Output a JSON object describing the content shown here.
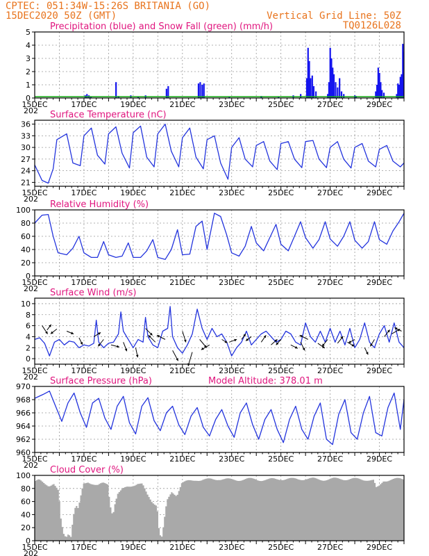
{
  "header": {
    "line1": "CPTEC:  051:34W-15:26S  BRITANIA (GO)",
    "line2": "15DEC2020 50Z (GMT)",
    "grid_note": "Vertical Grid Line: 50Z",
    "code": "TQ0126L028"
  },
  "colors": {
    "header": "#e8731c",
    "title": "#e0157e",
    "rain": "#1515ee",
    "snow": "#11aa11",
    "line": "#2233dd",
    "cloud": "#a9a9a9"
  },
  "chart_data": [
    {
      "id": "precip",
      "type": "bar",
      "title": "Precipitation (blue) and Snow Fall (green) (mm/h)",
      "ylim": [
        0,
        5
      ],
      "yticks": [
        0,
        1,
        2,
        3,
        4,
        5
      ],
      "xlim": [
        15,
        30
      ],
      "xticks": [
        "15DEC",
        "17DEC",
        "19DEC",
        "21DEC",
        "23DEC",
        "25DEC",
        "27DEC",
        "29DEC"
      ],
      "x_sub": "202",
      "rain_events": [
        [
          17.05,
          0.2
        ],
        [
          17.12,
          0.3
        ],
        [
          17.2,
          0.2
        ],
        [
          17.28,
          0.1
        ],
        [
          18.3,
          1.2
        ],
        [
          18.4,
          0.15
        ],
        [
          18.9,
          0.2
        ],
        [
          19.2,
          0.1
        ],
        [
          19.5,
          0.2
        ],
        [
          20.35,
          0.7
        ],
        [
          20.42,
          0.9
        ],
        [
          21.65,
          1.1
        ],
        [
          21.72,
          1.2
        ],
        [
          21.8,
          1.0
        ],
        [
          21.87,
          1.1
        ],
        [
          22.9,
          0.1
        ],
        [
          24.2,
          0.15
        ],
        [
          24.9,
          0.1
        ],
        [
          25.5,
          0.2
        ],
        [
          25.8,
          0.3
        ],
        [
          26.05,
          1.5
        ],
        [
          26.1,
          3.8
        ],
        [
          26.15,
          2.8
        ],
        [
          26.2,
          1.5
        ],
        [
          26.27,
          1.7
        ],
        [
          26.33,
          0.9
        ],
        [
          26.42,
          0.5
        ],
        [
          26.9,
          0.3
        ],
        [
          26.95,
          1.2
        ],
        [
          27.0,
          3.8
        ],
        [
          27.05,
          3.0
        ],
        [
          27.1,
          2.3
        ],
        [
          27.15,
          1.8
        ],
        [
          27.22,
          1.2
        ],
        [
          27.3,
          0.8
        ],
        [
          27.38,
          1.5
        ],
        [
          27.46,
          0.5
        ],
        [
          27.55,
          0.3
        ],
        [
          28.0,
          0.2
        ],
        [
          28.05,
          0.15
        ],
        [
          28.85,
          0.5
        ],
        [
          28.9,
          1.0
        ],
        [
          28.95,
          2.3
        ],
        [
          29.0,
          1.9
        ],
        [
          29.05,
          1.2
        ],
        [
          29.1,
          0.6
        ],
        [
          29.18,
          0.4
        ],
        [
          29.7,
          0.3
        ],
        [
          29.75,
          1.1
        ],
        [
          29.8,
          1.0
        ],
        [
          29.85,
          1.6
        ],
        [
          29.9,
          1.8
        ],
        [
          29.95,
          4.1
        ],
        [
          29.98,
          3.5
        ]
      ],
      "snow_level": 0.1
    },
    {
      "id": "temp",
      "type": "line",
      "title": "Surface Temperature (nC)",
      "ylim": [
        20,
        37
      ],
      "yticks": [
        21,
        24,
        27,
        30,
        33,
        36
      ],
      "xlim": [
        15,
        30
      ],
      "xticks": [
        "15DEC",
        "17DEC",
        "19DEC",
        "21DEC",
        "23DEC",
        "25DEC",
        "27DEC",
        "29DEC"
      ],
      "x_sub": "202",
      "x": [
        15.0,
        15.3,
        15.55,
        15.75,
        15.9,
        16.3,
        16.55,
        16.85,
        17.0,
        17.3,
        17.55,
        17.85,
        18.0,
        18.3,
        18.55,
        18.85,
        19.0,
        19.3,
        19.55,
        19.85,
        20.0,
        20.3,
        20.55,
        20.85,
        21.0,
        21.3,
        21.55,
        21.85,
        22.0,
        22.3,
        22.55,
        22.85,
        23.0,
        23.3,
        23.55,
        23.85,
        24.0,
        24.3,
        24.55,
        24.85,
        25.0,
        25.3,
        25.55,
        25.85,
        26.0,
        26.3,
        26.55,
        26.85,
        27.0,
        27.3,
        27.55,
        27.85,
        28.0,
        28.3,
        28.55,
        28.85,
        29.0,
        29.3,
        29.55,
        29.85,
        30.0
      ],
      "y": [
        25.5,
        21.5,
        20.8,
        24.5,
        32.0,
        33.5,
        26.0,
        25.3,
        33.0,
        35.0,
        28.0,
        25.7,
        33.5,
        35.3,
        28.5,
        24.7,
        33.8,
        35.5,
        27.5,
        25.0,
        33.5,
        36.0,
        29.0,
        25.0,
        32.5,
        35.0,
        27.5,
        24.5,
        32.0,
        33.0,
        26.0,
        21.8,
        30.0,
        32.5,
        27.0,
        25.0,
        30.5,
        31.5,
        26.5,
        24.3,
        31.0,
        31.5,
        27.0,
        24.8,
        31.5,
        31.8,
        27.0,
        24.8,
        30.0,
        31.5,
        27.0,
        24.7,
        30.0,
        31.0,
        26.5,
        25.0,
        29.5,
        30.5,
        26.5,
        25.0,
        26.0
      ]
    },
    {
      "id": "rh",
      "type": "line",
      "title": "Relative Humidity (%)",
      "ylim": [
        0,
        100
      ],
      "yticks": [
        0,
        20,
        40,
        60,
        80,
        100
      ],
      "xlim": [
        15,
        30
      ],
      "xticks": [
        "15DEC",
        "17DEC",
        "19DEC",
        "21DEC",
        "23DEC",
        "25DEC",
        "27DEC",
        "29DEC"
      ],
      "x_sub": "202",
      "x": [
        15.0,
        15.3,
        15.55,
        15.75,
        15.95,
        16.3,
        16.55,
        16.8,
        17.0,
        17.3,
        17.55,
        17.8,
        18.0,
        18.3,
        18.55,
        18.8,
        19.0,
        19.3,
        19.55,
        19.8,
        20.0,
        20.3,
        20.55,
        20.8,
        21.0,
        21.3,
        21.55,
        21.8,
        22.0,
        22.3,
        22.55,
        22.8,
        23.0,
        23.3,
        23.55,
        23.8,
        24.0,
        24.3,
        24.55,
        24.8,
        25.0,
        25.3,
        25.55,
        25.8,
        26.0,
        26.3,
        26.55,
        26.8,
        27.0,
        27.3,
        27.55,
        27.8,
        28.0,
        28.3,
        28.55,
        28.8,
        29.0,
        29.3,
        29.55,
        29.8,
        30.0
      ],
      "y": [
        80,
        92,
        93,
        60,
        35,
        32,
        42,
        60,
        35,
        28,
        28,
        52,
        32,
        28,
        30,
        50,
        28,
        28,
        38,
        55,
        28,
        25,
        40,
        70,
        32,
        33,
        75,
        83,
        40,
        95,
        90,
        62,
        35,
        30,
        45,
        75,
        50,
        38,
        58,
        78,
        48,
        38,
        60,
        82,
        58,
        42,
        55,
        82,
        56,
        45,
        60,
        82,
        54,
        42,
        52,
        82,
        55,
        48,
        68,
        82,
        95
      ]
    },
    {
      "id": "wind",
      "type": "line",
      "title": "Surface Wind (m/s)",
      "ylim": [
        -1,
        11
      ],
      "yticks": [
        0,
        2,
        4,
        6,
        8,
        10
      ],
      "xlim": [
        15,
        30
      ],
      "xticks": [
        "15DEC",
        "17DEC",
        "19DEC",
        "21DEC",
        "23DEC",
        "25DEC",
        "27DEC",
        "29DEC"
      ],
      "x_sub": "202",
      "x": [
        15.0,
        15.2,
        15.4,
        15.6,
        15.8,
        16.0,
        16.2,
        16.4,
        16.6,
        16.8,
        17.0,
        17.2,
        17.4,
        17.5,
        17.6,
        17.7,
        17.8,
        18.0,
        18.2,
        18.4,
        18.5,
        18.6,
        18.8,
        19.0,
        19.2,
        19.4,
        19.5,
        19.6,
        19.8,
        20.0,
        20.2,
        20.4,
        20.5,
        20.6,
        20.8,
        21.0,
        21.2,
        21.4,
        21.6,
        21.8,
        22.0,
        22.2,
        22.4,
        22.6,
        22.8,
        23.0,
        23.2,
        23.4,
        23.6,
        23.8,
        24.0,
        24.2,
        24.4,
        24.6,
        24.8,
        25.0,
        25.2,
        25.4,
        25.6,
        25.8,
        26.0,
        26.2,
        26.4,
        26.6,
        26.8,
        27.0,
        27.2,
        27.4,
        27.6,
        27.8,
        28.0,
        28.2,
        28.4,
        28.6,
        28.8,
        29.0,
        29.2,
        29.4,
        29.6,
        29.8,
        30.0
      ],
      "y": [
        3.5,
        3.8,
        2.8,
        0.5,
        3.0,
        3.5,
        2.5,
        3.2,
        3.0,
        2.0,
        2.5,
        2.3,
        2.8,
        7.0,
        3.0,
        2.5,
        2.0,
        2.8,
        3.0,
        4.5,
        8.5,
        5.0,
        3.5,
        2.0,
        3.5,
        3.0,
        7.5,
        4.0,
        2.5,
        2.0,
        5.0,
        5.5,
        9.5,
        4.0,
        2.0,
        1.0,
        2.5,
        4.5,
        9.0,
        5.5,
        3.5,
        5.5,
        4.0,
        4.5,
        3.0,
        0.5,
        2.0,
        3.0,
        5.0,
        2.5,
        3.5,
        4.5,
        5.0,
        4.0,
        3.0,
        3.5,
        5.0,
        4.5,
        3.0,
        2.5,
        6.5,
        4.0,
        3.0,
        5.0,
        3.0,
        5.5,
        3.0,
        5.0,
        2.5,
        5.5,
        2.0,
        3.5,
        6.5,
        3.0,
        2.0,
        4.5,
        6.0,
        3.0,
        6.5,
        3.0,
        2.0
      ],
      "arrows": [
        [
          15.3,
          6.0,
          0.08,
          0.12
        ],
        [
          15.5,
          5.2,
          0.06,
          -0.08
        ],
        [
          15.9,
          5.4,
          -0.09,
          0.07
        ],
        [
          16.3,
          5.0,
          0.1,
          0.04
        ],
        [
          16.8,
          3.8,
          0.05,
          0.1
        ],
        [
          17.4,
          4.0,
          0.1,
          -0.06
        ],
        [
          17.8,
          3.5,
          -0.08,
          0.1
        ],
        [
          18.1,
          2.5,
          0.12,
          0.03
        ],
        [
          18.6,
          3.0,
          0.05,
          0.13
        ],
        [
          19.1,
          2.0,
          0.03,
          0.14
        ],
        [
          19.5,
          5.5,
          0.1,
          0.1
        ],
        [
          19.9,
          3.0,
          -0.1,
          -0.1
        ],
        [
          20.3,
          3.5,
          -0.12,
          -0.06
        ],
        [
          20.6,
          1.5,
          0.08,
          0.15
        ],
        [
          21.0,
          5.0,
          0.05,
          0.16
        ],
        [
          21.4,
          1.2,
          -0.06,
          0.2
        ],
        [
          21.7,
          3.5,
          0.1,
          0.12
        ],
        [
          22.1,
          2.5,
          -0.12,
          0.07
        ],
        [
          22.6,
          3.5,
          0.08,
          0.05
        ],
        [
          22.9,
          3.0,
          0.11,
          -0.04
        ],
        [
          23.4,
          3.5,
          0.06,
          -0.08
        ],
        [
          23.8,
          4.0,
          -0.08,
          0.06
        ],
        [
          24.2,
          3.0,
          0.07,
          -0.1
        ],
        [
          24.6,
          2.5,
          0.09,
          -0.08
        ],
        [
          25.0,
          3.5,
          -0.07,
          0.08
        ],
        [
          25.4,
          2.5,
          0.1,
          0.05
        ],
        [
          25.8,
          3.0,
          0.06,
          0.12
        ],
        [
          26.1,
          3.5,
          -0.12,
          -0.06
        ],
        [
          26.5,
          2.8,
          0.1,
          0.07
        ],
        [
          26.9,
          3.5,
          -0.08,
          0.1
        ],
        [
          27.3,
          2.8,
          0.08,
          -0.1
        ],
        [
          27.7,
          3.0,
          0.1,
          0.06
        ],
        [
          28.0,
          3.5,
          -0.09,
          0.05
        ],
        [
          28.4,
          2.0,
          0.05,
          0.1
        ],
        [
          28.8,
          3.5,
          -0.06,
          0.1
        ],
        [
          29.2,
          4.0,
          0.08,
          -0.1
        ],
        [
          29.5,
          4.5,
          0.12,
          -0.07
        ],
        [
          29.9,
          5.0,
          -0.1,
          -0.05
        ]
      ]
    },
    {
      "id": "pressure",
      "type": "line",
      "title": "Surface Pressure (hPa)",
      "note": "Model Altitude: 378.01 m",
      "ylim": [
        960,
        970
      ],
      "yticks": [
        960,
        962,
        964,
        966,
        968,
        970
      ],
      "xlim": [
        15,
        30
      ],
      "xticks": [
        "15DEC",
        "17DEC",
        "19DEC",
        "21DEC",
        "23DEC",
        "25DEC",
        "27DEC",
        "29DEC"
      ],
      "x_sub": "202",
      "x": [
        15.0,
        15.35,
        15.6,
        15.85,
        16.1,
        16.35,
        16.6,
        16.85,
        17.1,
        17.35,
        17.6,
        17.85,
        18.1,
        18.35,
        18.6,
        18.85,
        19.1,
        19.35,
        19.6,
        19.85,
        20.1,
        20.35,
        20.6,
        20.85,
        21.1,
        21.35,
        21.6,
        21.85,
        22.1,
        22.35,
        22.6,
        22.85,
        23.1,
        23.35,
        23.6,
        23.85,
        24.1,
        24.35,
        24.6,
        24.85,
        25.1,
        25.35,
        25.6,
        25.85,
        26.1,
        26.35,
        26.6,
        26.85,
        27.1,
        27.35,
        27.6,
        27.85,
        28.1,
        28.35,
        28.6,
        28.85,
        29.1,
        29.35,
        29.6,
        29.85,
        30.0
      ],
      "y": [
        968.2,
        968.8,
        969.3,
        967.0,
        964.7,
        967.5,
        969.0,
        966.0,
        963.8,
        967.5,
        968.2,
        965.2,
        963.5,
        967.0,
        968.5,
        964.5,
        962.8,
        967.0,
        968.3,
        964.8,
        963.3,
        966.0,
        967.0,
        964.2,
        962.7,
        965.5,
        966.8,
        963.8,
        962.5,
        965.0,
        966.5,
        964.0,
        962.3,
        966.0,
        967.5,
        964.2,
        962.0,
        965.0,
        966.5,
        963.5,
        961.5,
        965.0,
        967.0,
        963.5,
        962.0,
        965.5,
        967.5,
        962.0,
        961.2,
        965.8,
        968.0,
        963.0,
        962.0,
        966.0,
        968.5,
        963.0,
        962.5,
        966.8,
        969.0,
        963.5,
        968.0
      ]
    },
    {
      "id": "cloud",
      "type": "area",
      "title": "Cloud Cover (%)",
      "ylim": [
        0,
        100
      ],
      "yticks": [
        0,
        20,
        40,
        60,
        80,
        100
      ],
      "xlim": [
        15,
        30
      ],
      "xticks": [
        "15DEC",
        "17DEC",
        "19DEC",
        "21DEC",
        "23DEC",
        "25DEC",
        "27DEC",
        "29DEC"
      ],
      "x_sub": "202",
      "x": [
        15.0,
        15.2,
        15.4,
        15.6,
        15.8,
        16.0,
        16.1,
        16.2,
        16.3,
        16.4,
        16.5,
        16.6,
        16.7,
        16.8,
        17.0,
        17.2,
        17.4,
        17.6,
        17.8,
        18.0,
        18.1,
        18.2,
        18.3,
        18.4,
        18.6,
        18.8,
        19.0,
        19.2,
        19.4,
        19.6,
        19.8,
        20.0,
        20.1,
        20.2,
        20.4,
        20.6,
        20.8,
        21.0,
        21.2,
        21.4,
        21.6,
        21.8,
        22.0,
        22.5,
        23.0,
        23.5,
        24.0,
        24.5,
        25.0,
        25.5,
        26.0,
        26.5,
        27.0,
        27.5,
        28.0,
        28.5,
        28.8,
        28.9,
        29.0,
        29.2,
        29.5,
        30.0
      ],
      "y": [
        90,
        92,
        88,
        85,
        88,
        75,
        30,
        10,
        5,
        12,
        8,
        40,
        55,
        48,
        85,
        90,
        88,
        85,
        87,
        86,
        55,
        40,
        60,
        72,
        78,
        82,
        85,
        88,
        86,
        70,
        60,
        55,
        10,
        5,
        60,
        75,
        70,
        88,
        90,
        92,
        94,
        93,
        93,
        95,
        93,
        94,
        94,
        93,
        95,
        94,
        95,
        94,
        94,
        95,
        94,
        94,
        92,
        80,
        82,
        92,
        94,
        94
      ]
    }
  ]
}
